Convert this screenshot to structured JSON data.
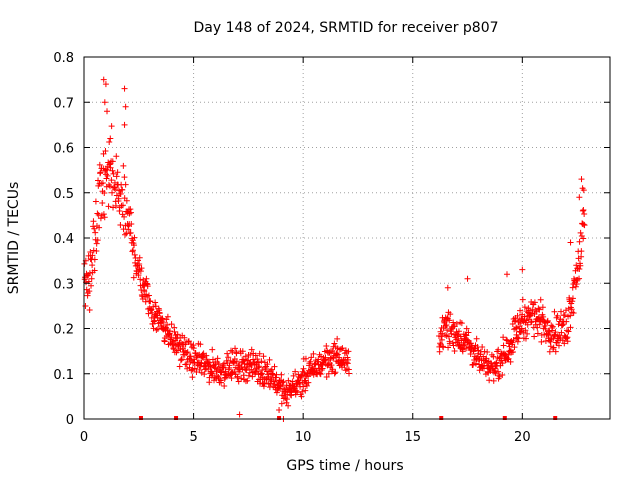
{
  "colors": {
    "data": "#ff0000",
    "grid": "#a0a0a0",
    "axis": "#000000",
    "background": "#ffffff"
  },
  "chart_data": {
    "type": "scatter",
    "marker": "plus",
    "title": "Day 148 of 2024, SRMTID for receiver p807",
    "xlabel": "GPS time / hours",
    "ylabel": "SRMTID / TECUs",
    "xlim": [
      0,
      24
    ],
    "ylim": [
      0,
      0.8
    ],
    "xticks": [
      0,
      5,
      10,
      15,
      20
    ],
    "yticks": [
      0,
      0.1,
      0.2,
      0.3,
      0.4,
      0.5,
      0.6,
      0.7,
      0.8
    ],
    "grid": true,
    "baseline_markers_x": [
      2.6,
      4.2,
      8.9,
      16.3,
      19.2,
      21.5
    ],
    "trend": {
      "x": [
        0.0,
        0.3,
        0.6,
        0.9,
        1.2,
        1.5,
        1.8,
        2.1,
        2.5,
        3.0,
        3.5,
        4.0,
        4.5,
        5.0,
        5.5,
        6.0,
        6.5,
        7.0,
        7.5,
        8.0,
        8.5,
        9.0,
        9.2,
        9.5,
        10.0,
        10.5,
        11.0,
        11.5,
        12.1,
        16.2,
        16.5,
        17.0,
        17.5,
        18.0,
        18.5,
        19.0,
        19.5,
        20.0,
        20.5,
        21.0,
        21.5,
        22.0,
        22.3,
        22.6,
        22.8
      ],
      "y": [
        0.3,
        0.33,
        0.43,
        0.52,
        0.54,
        0.5,
        0.47,
        0.42,
        0.33,
        0.25,
        0.22,
        0.18,
        0.15,
        0.13,
        0.12,
        0.11,
        0.11,
        0.12,
        0.12,
        0.11,
        0.1,
        0.07,
        0.05,
        0.07,
        0.09,
        0.11,
        0.13,
        0.14,
        0.12,
        0.18,
        0.2,
        0.19,
        0.17,
        0.13,
        0.11,
        0.13,
        0.17,
        0.22,
        0.23,
        0.21,
        0.19,
        0.2,
        0.28,
        0.36,
        0.43
      ],
      "spread": [
        0.1,
        0.12,
        0.14,
        0.14,
        0.14,
        0.12,
        0.11,
        0.1,
        0.08,
        0.06,
        0.06,
        0.05,
        0.05,
        0.05,
        0.05,
        0.05,
        0.05,
        0.05,
        0.05,
        0.05,
        0.05,
        0.04,
        0.04,
        0.04,
        0.05,
        0.05,
        0.05,
        0.05,
        0.04,
        0.05,
        0.06,
        0.06,
        0.05,
        0.05,
        0.04,
        0.05,
        0.06,
        0.06,
        0.06,
        0.06,
        0.06,
        0.07,
        0.08,
        0.09,
        0.09
      ]
    },
    "highlight_points": [
      {
        "x": 0.9,
        "y": 0.75
      },
      {
        "x": 1.0,
        "y": 0.74
      },
      {
        "x": 0.95,
        "y": 0.7
      },
      {
        "x": 1.85,
        "y": 0.73
      },
      {
        "x": 1.9,
        "y": 0.69
      },
      {
        "x": 1.85,
        "y": 0.65
      },
      {
        "x": 1.05,
        "y": 0.68
      },
      {
        "x": 1.2,
        "y": 0.62
      },
      {
        "x": 22.7,
        "y": 0.53
      },
      {
        "x": 22.75,
        "y": 0.51
      },
      {
        "x": 22.6,
        "y": 0.49
      },
      {
        "x": 22.8,
        "y": 0.43
      },
      {
        "x": 22.2,
        "y": 0.39
      },
      {
        "x": 19.3,
        "y": 0.32
      },
      {
        "x": 20.0,
        "y": 0.33
      },
      {
        "x": 17.5,
        "y": 0.31
      },
      {
        "x": 16.6,
        "y": 0.29
      },
      {
        "x": 8.9,
        "y": 0.02
      },
      {
        "x": 9.1,
        "y": 0.0
      },
      {
        "x": 7.1,
        "y": 0.01
      }
    ]
  }
}
